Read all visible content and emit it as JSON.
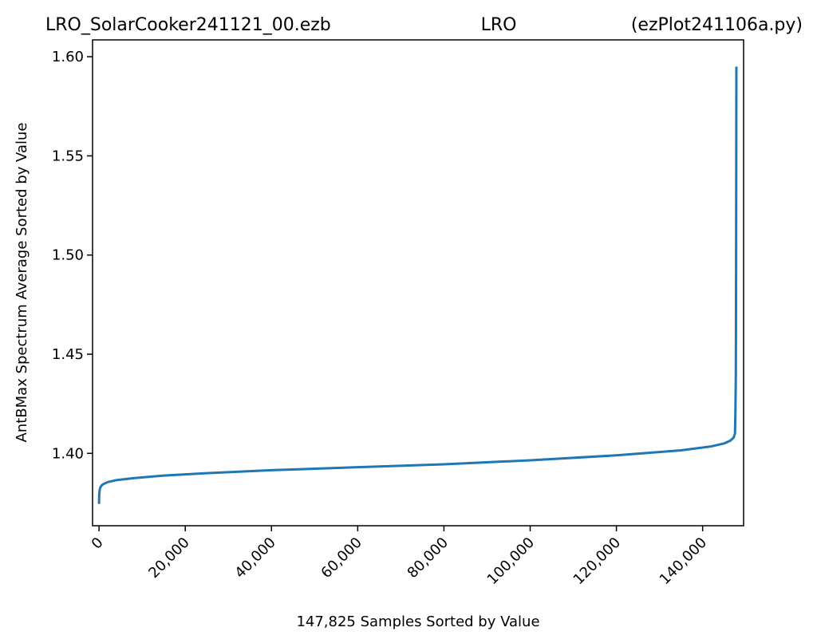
{
  "header": {
    "title_left": "LRO_SolarCooker241121_00.ezb",
    "title_center": "LRO",
    "title_right": "(ezPlot241106a.py)"
  },
  "chart_data": {
    "type": "line",
    "xlabel": "147,825 Samples Sorted by Value",
    "ylabel": "AntBMax Spectrum Average Sorted by Value",
    "xlim": [
      -1500,
      149500
    ],
    "ylim": [
      1.3635,
      1.6085
    ],
    "x_ticks": [
      0,
      20000,
      40000,
      60000,
      80000,
      100000,
      120000,
      140000
    ],
    "x_tick_labels": [
      "0",
      "20,000",
      "40,000",
      "60,000",
      "80,000",
      "100,000",
      "120,000",
      "140,000"
    ],
    "y_ticks": [
      1.4,
      1.45,
      1.5,
      1.55,
      1.6
    ],
    "y_tick_labels": [
      "1.40",
      "1.45",
      "1.50",
      "1.55",
      "1.60"
    ],
    "series": [
      {
        "color": "#1f77b4",
        "x": [
          0,
          50,
          150,
          300,
          600,
          1000,
          2000,
          4000,
          8000,
          15000,
          25000,
          40000,
          60000,
          80000,
          100000,
          120000,
          135000,
          142000,
          145000,
          146500,
          147200,
          147500,
          147600,
          147700,
          147750,
          147780,
          147800,
          147810,
          147825
        ],
        "y": [
          1.3745,
          1.3795,
          1.3815,
          1.3828,
          1.3838,
          1.3845,
          1.3855,
          1.3865,
          1.3875,
          1.3888,
          1.39,
          1.3915,
          1.393,
          1.3945,
          1.3965,
          1.399,
          1.4015,
          1.4035,
          1.405,
          1.4065,
          1.408,
          1.41,
          1.42,
          1.44,
          1.48,
          1.52,
          1.55,
          1.57,
          1.595
        ]
      }
    ]
  }
}
